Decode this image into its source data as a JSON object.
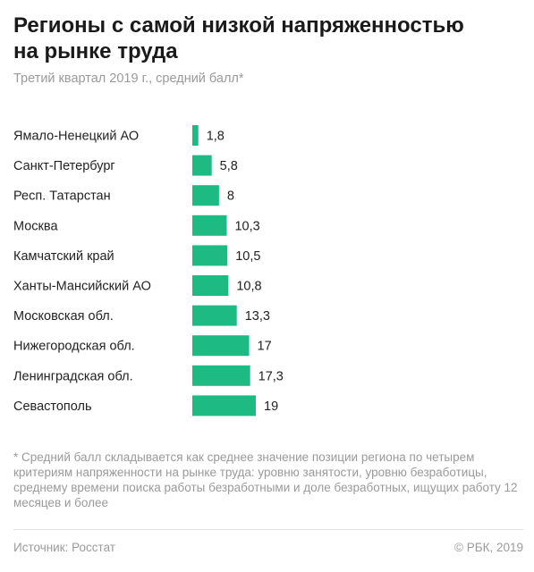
{
  "title_line1": "Регионы с самой низкой напряженностью",
  "title_line2": "на рынке труда",
  "subtitle": "Третий квартал 2019 г., средний балл*",
  "footnote": "* Средний балл складывается как среднее значение позиции региона по четырем критериям напряженности на рынке труда: уровню занятости, уровню безработицы, среднему времени поиска работы безработными и доле безработных, ищущих работу 12 месяцев и более",
  "source": "Источник: Росстат",
  "copyright": "© РБК, 2019",
  "colors": {
    "bar": "#1dba83"
  },
  "chart_data": {
    "type": "bar",
    "orientation": "horizontal",
    "categories": [
      "Ямало-Ненецкий АО",
      "Санкт-Петербург",
      "Респ. Татарстан",
      "Москва",
      "Камчатский край",
      "Ханты-Мансийский АО",
      "Московская обл.",
      "Нижегородская обл.",
      "Ленинградская обл.",
      "Севастополь"
    ],
    "values": [
      1.8,
      5.8,
      8,
      10.3,
      10.5,
      10.8,
      13.3,
      17,
      17.3,
      19
    ],
    "value_labels": [
      "1,8",
      "5,8",
      "8",
      "10,3",
      "10,5",
      "10,8",
      "13,3",
      "17",
      "17,3",
      "19"
    ],
    "xlim": [
      0,
      19
    ],
    "grid": false,
    "legend": "none"
  }
}
